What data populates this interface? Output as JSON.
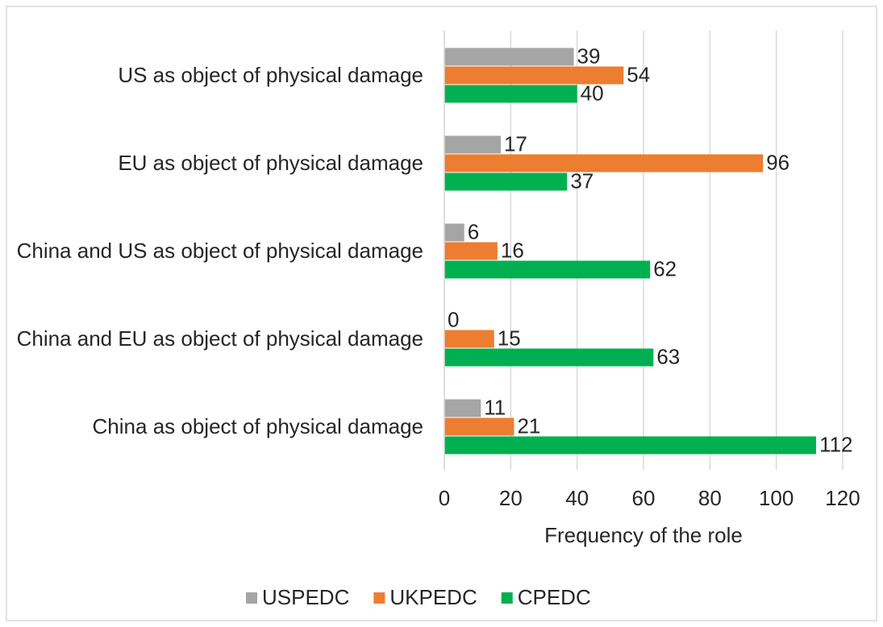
{
  "chart_data": {
    "type": "bar",
    "orientation": "horizontal",
    "categories": [
      "US as object of physical damage",
      "EU as object of physical damage",
      "China and US as object of physical damage",
      "China and EU as object of physical damage",
      "China as object of physical damage"
    ],
    "series": [
      {
        "name": "USPEDC",
        "color": "#a5a5a5",
        "values": [
          39,
          17,
          6,
          0,
          11
        ]
      },
      {
        "name": "UKPEDC",
        "color": "#ed7d31",
        "values": [
          54,
          96,
          16,
          15,
          21
        ]
      },
      {
        "name": "CPEDC",
        "color": "#00b050",
        "values": [
          40,
          37,
          62,
          63,
          112
        ]
      }
    ],
    "xlabel": "Frequency  of the role",
    "xlim": [
      0,
      120
    ],
    "xticks": [
      0,
      20,
      40,
      60,
      80,
      100,
      120
    ],
    "grid": true,
    "legend": "bottom"
  }
}
